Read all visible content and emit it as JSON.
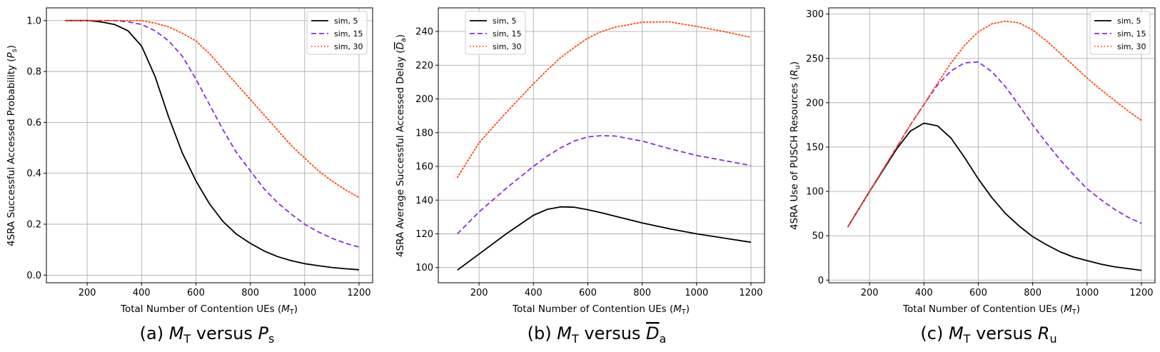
{
  "chart_data": [
    {
      "type": "line",
      "caption": "(a) M_T versus P_s",
      "xlabel": "Total Number of Contention UEs (M_T)",
      "ylabel": "4SRA Successful Accessed Probability (P_s)",
      "xlim": [
        50,
        1250
      ],
      "ylim": [
        -0.03,
        1.05
      ],
      "xticks": [
        200,
        400,
        600,
        800,
        1000,
        1200
      ],
      "yticks": [
        0.0,
        0.2,
        0.4,
        0.6,
        0.8,
        1.0
      ],
      "ytick_labels": [
        "0.0",
        "0.2",
        "0.4",
        "0.6",
        "0.8",
        "1.0"
      ],
      "grid": true,
      "legend_position": "top-right",
      "x": [
        120,
        200,
        250,
        300,
        350,
        400,
        450,
        500,
        550,
        600,
        650,
        700,
        750,
        800,
        850,
        900,
        950,
        1000,
        1050,
        1100,
        1150,
        1200
      ],
      "series": [
        {
          "name": "sim, 5",
          "color": "#000000",
          "dash": "solid",
          "values": [
            1.0,
            1.0,
            0.995,
            0.985,
            0.96,
            0.9,
            0.78,
            0.62,
            0.48,
            0.37,
            0.28,
            0.21,
            0.16,
            0.125,
            0.095,
            0.073,
            0.057,
            0.045,
            0.037,
            0.03,
            0.025,
            0.021
          ]
        },
        {
          "name": "sim, 15",
          "color": "#8a2be2",
          "dash": "dashed",
          "values": [
            1.0,
            1.0,
            1.0,
            1.0,
            0.995,
            0.985,
            0.96,
            0.92,
            0.86,
            0.77,
            0.67,
            0.57,
            0.48,
            0.41,
            0.34,
            0.285,
            0.24,
            0.2,
            0.17,
            0.145,
            0.125,
            0.11
          ]
        },
        {
          "name": "sim, 30",
          "color": "#ff4500",
          "dash": "dotted",
          "values": [
            1.0,
            1.0,
            1.0,
            1.0,
            1.0,
            1.0,
            0.99,
            0.975,
            0.95,
            0.92,
            0.87,
            0.81,
            0.75,
            0.69,
            0.63,
            0.57,
            0.51,
            0.46,
            0.41,
            0.37,
            0.335,
            0.305
          ]
        }
      ]
    },
    {
      "type": "line",
      "caption": "(b) M_T versus D_a",
      "xlabel": "Total Number of Contention UEs (M_T)",
      "ylabel": "4SRA Average Successful Accessed Delay (D_a)",
      "xlim": [
        50,
        1250
      ],
      "ylim": [
        91,
        254
      ],
      "xticks": [
        200,
        400,
        600,
        800,
        1000,
        1200
      ],
      "yticks": [
        100,
        120,
        140,
        160,
        180,
        200,
        220,
        240
      ],
      "ytick_labels": [
        "100",
        "120",
        "140",
        "160",
        "180",
        "200",
        "220",
        "240"
      ],
      "grid": true,
      "legend_position": "top-left",
      "x": [
        120,
        200,
        300,
        400,
        450,
        500,
        550,
        600,
        650,
        700,
        800,
        900,
        1000,
        1100,
        1200
      ],
      "series": [
        {
          "name": "sim, 5",
          "color": "#000000",
          "dash": "solid",
          "values": [
            98.5,
            108,
            120,
            131,
            134.5,
            136,
            135.8,
            134.3,
            132.5,
            130.5,
            126.5,
            123,
            120,
            117.5,
            115
          ]
        },
        {
          "name": "sim, 15",
          "color": "#8a2be2",
          "dash": "dashed",
          "values": [
            120,
            133,
            147,
            160,
            166,
            171,
            175,
            177.5,
            178.2,
            178,
            175,
            170.5,
            166.5,
            163.5,
            160.5
          ]
        },
        {
          "name": "sim, 30",
          "color": "#ff4500",
          "dash": "dotted",
          "values": [
            153.5,
            174,
            192,
            209,
            217,
            224.5,
            230.5,
            236,
            240,
            242.5,
            245.5,
            245.7,
            243,
            240,
            236.5
          ]
        }
      ]
    },
    {
      "type": "line",
      "caption": "(c) M_T versus R_u",
      "xlabel": "Total Number of Contention UEs (M_T)",
      "ylabel": "4SRA Use of PUSCH Resources (R_u)",
      "xlim": [
        50,
        1250
      ],
      "ylim": [
        -3,
        307
      ],
      "xticks": [
        200,
        400,
        600,
        800,
        1000,
        1200
      ],
      "yticks": [
        0,
        50,
        100,
        150,
        200,
        250,
        300
      ],
      "ytick_labels": [
        "0",
        "50",
        "100",
        "150",
        "200",
        "250",
        "300"
      ],
      "grid": true,
      "legend_position": "top-right",
      "x": [
        120,
        150,
        200,
        250,
        300,
        350,
        400,
        450,
        500,
        550,
        600,
        650,
        700,
        750,
        800,
        850,
        900,
        950,
        1000,
        1050,
        1100,
        1150,
        1200
      ],
      "series": [
        {
          "name": "sim, 5",
          "color": "#000000",
          "dash": "solid",
          "values": [
            60,
            75,
            100,
            124,
            148,
            168,
            177,
            174,
            160,
            138,
            114,
            93,
            75,
            61,
            49,
            40,
            32,
            26,
            22,
            18,
            15,
            13,
            11
          ]
        },
        {
          "name": "sim, 15",
          "color": "#8a2be2",
          "dash": "dashed",
          "values": [
            60,
            75,
            100,
            125,
            150,
            175,
            198,
            220,
            236,
            245,
            246,
            235,
            218,
            197,
            175,
            155,
            136,
            119,
            103,
            91,
            80,
            71,
            64
          ]
        },
        {
          "name": "sim, 30",
          "color": "#ff4500",
          "dash": "dotted",
          "values": [
            60,
            75,
            100,
            125,
            150,
            175,
            198,
            222,
            245,
            265,
            280,
            289,
            292,
            290,
            282,
            270,
            256,
            242,
            228,
            215,
            203,
            191,
            180
          ]
        }
      ]
    }
  ]
}
